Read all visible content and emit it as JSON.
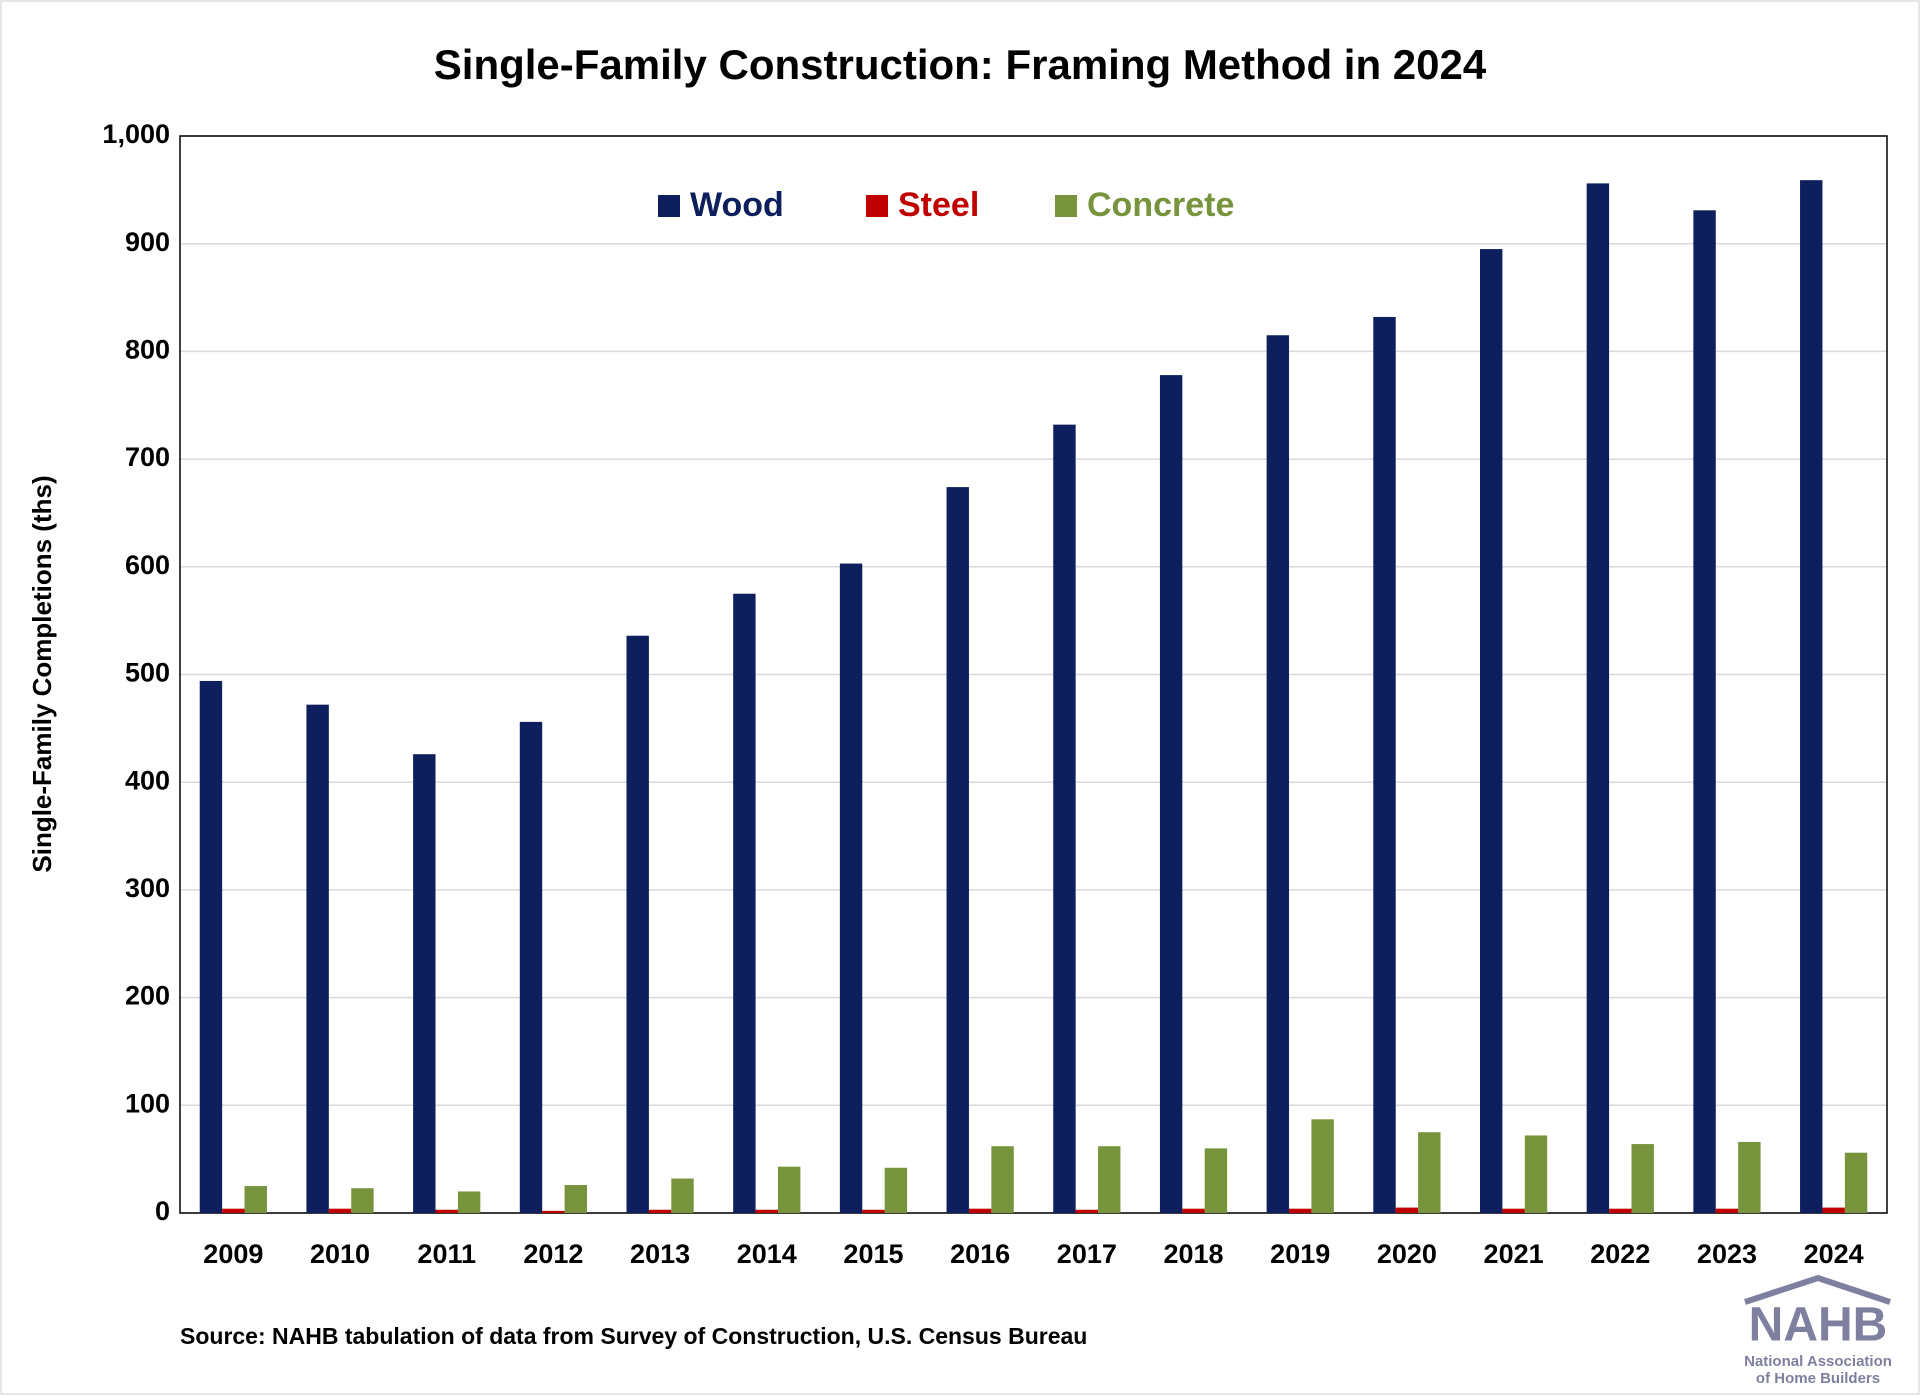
{
  "chart_data": {
    "type": "bar",
    "title": "Single-Family Construction: Framing Method in 2024",
    "y_label": "Single-Family Completions (ths)",
    "categories": [
      "2009",
      "2010",
      "2011",
      "2012",
      "2013",
      "2014",
      "2015",
      "2016",
      "2017",
      "2018",
      "2019",
      "2020",
      "2021",
      "2022",
      "2023",
      "2024"
    ],
    "series": [
      {
        "name": "Wood",
        "color": "#0d1f5c",
        "values": [
          494,
          472,
          426,
          456,
          536,
          575,
          603,
          674,
          732,
          778,
          815,
          832,
          895,
          956,
          931,
          959
        ]
      },
      {
        "name": "Steel",
        "color": "#c00000",
        "values": [
          4,
          4,
          3,
          2,
          3,
          3,
          3,
          4,
          3,
          4,
          4,
          5,
          4,
          4,
          4,
          5
        ]
      },
      {
        "name": "Concrete",
        "color": "#77933c",
        "values": [
          25,
          23,
          20,
          26,
          32,
          43,
          42,
          62,
          62,
          60,
          87,
          75,
          72,
          64,
          66,
          56
        ]
      }
    ],
    "ylim": [
      0,
      1000
    ],
    "yticks": [
      0,
      100,
      200,
      300,
      400,
      500,
      600,
      700,
      800,
      900,
      {
        "value": 1000,
        "label": "1,000"
      }
    ],
    "grid": true,
    "legend": "top",
    "source": "Source: NAHB tabulation of data from Survey of Construction, U.S. Census Bureau",
    "logo": [
      "NAHB",
      "National Association",
      "of Home Builders"
    ]
  }
}
